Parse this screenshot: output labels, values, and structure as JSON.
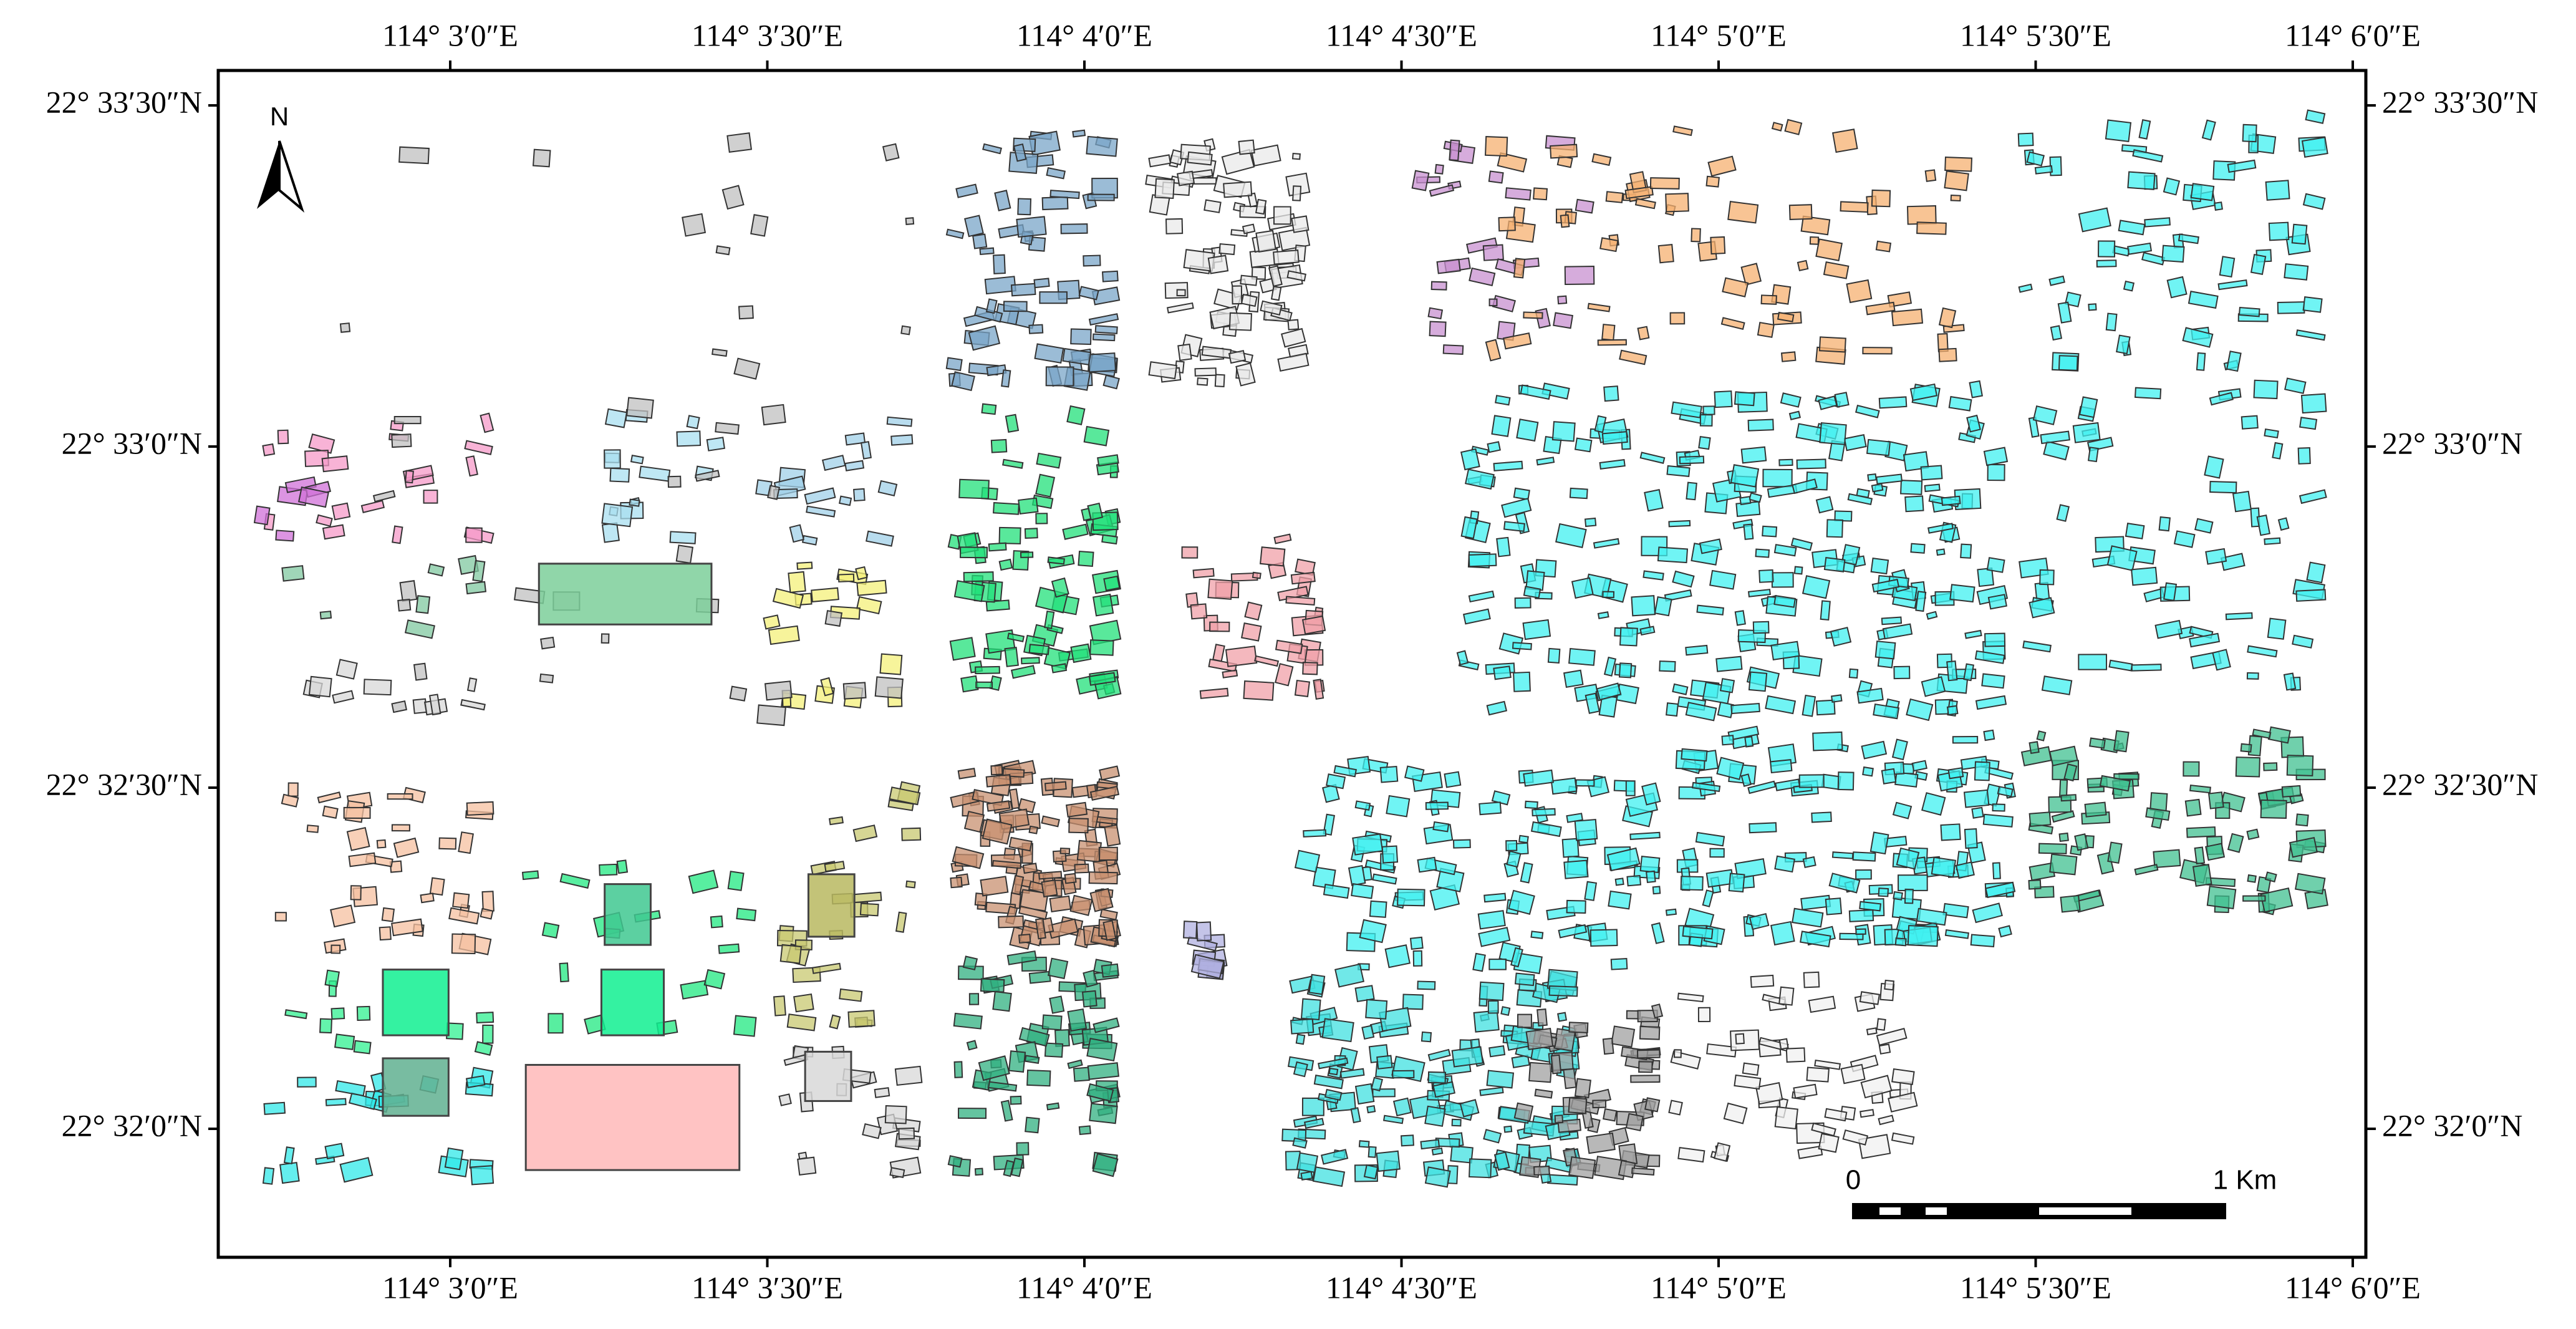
{
  "map": {
    "north_label": "N",
    "longitude_labels": [
      "114° 3′0″E",
      "114° 3′30″E",
      "114° 4′0″E",
      "114° 4′30″E",
      "114° 5′0″E",
      "114° 5′30″E",
      "114° 6′0″E"
    ],
    "latitude_labels": [
      "22° 33′30″N",
      "22° 33′0″N",
      "22° 32′30″N",
      "22° 32′0″N"
    ],
    "scale_bar": {
      "start_label": "0",
      "end_label": "1 Km"
    }
  }
}
